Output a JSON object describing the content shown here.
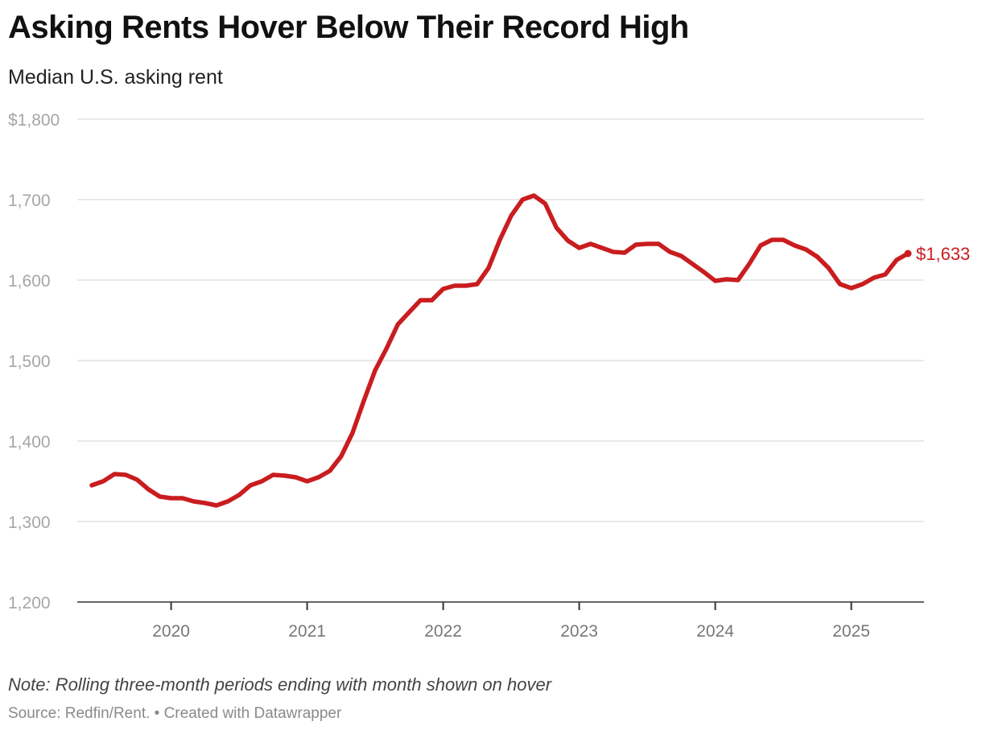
{
  "header": {
    "title": "Asking Rents Hover Below Their Record High",
    "subtitle": "Median U.S. asking rent"
  },
  "footer": {
    "note": "Note: Rolling three-month periods ending with month shown on hover",
    "source": "Source: Redfin/Rent. • Created with Datawrapper"
  },
  "chart_data": {
    "type": "line",
    "title": "Asking Rents Hover Below Their Record High",
    "subtitle": "Median U.S. asking rent",
    "xlabel": "",
    "ylabel": "",
    "ylim": [
      1200,
      1800
    ],
    "xlim": [
      "2019-05",
      "2025-07"
    ],
    "grid": true,
    "y_ticks": [
      1200,
      1300,
      1400,
      1500,
      1600,
      1700,
      1800
    ],
    "y_tick_labels": [
      "1,200",
      "1,300",
      "1,400",
      "1,500",
      "1,600",
      "1,700",
      "$1,800"
    ],
    "x_ticks": [
      "2020-01",
      "2021-01",
      "2022-01",
      "2023-01",
      "2024-01",
      "2025-01"
    ],
    "x_tick_labels": [
      "2020",
      "2021",
      "2022",
      "2023",
      "2024",
      "2025"
    ],
    "end_label": "$1,633",
    "colors": {
      "line": "#c91d1f",
      "grid": "#dcdcdc",
      "axis": "#333333"
    },
    "series": [
      {
        "points": [
          [
            "2019-06",
            1345
          ],
          [
            "2019-07",
            1350
          ],
          [
            "2019-08",
            1359
          ],
          [
            "2019-09",
            1358
          ],
          [
            "2019-10",
            1352
          ],
          [
            "2019-11",
            1340
          ],
          [
            "2019-12",
            1331
          ],
          [
            "2020-01",
            1329
          ],
          [
            "2020-02",
            1329
          ],
          [
            "2020-03",
            1325
          ],
          [
            "2020-04",
            1323
          ],
          [
            "2020-05",
            1320
          ],
          [
            "2020-06",
            1325
          ],
          [
            "2020-07",
            1333
          ],
          [
            "2020-08",
            1345
          ],
          [
            "2020-09",
            1350
          ],
          [
            "2020-10",
            1358
          ],
          [
            "2020-11",
            1357
          ],
          [
            "2020-12",
            1355
          ],
          [
            "2021-01",
            1350
          ],
          [
            "2021-02",
            1355
          ],
          [
            "2021-03",
            1363
          ],
          [
            "2021-04",
            1381
          ],
          [
            "2021-05",
            1410
          ],
          [
            "2021-06",
            1450
          ],
          [
            "2021-07",
            1488
          ],
          [
            "2021-08",
            1515
          ],
          [
            "2021-09",
            1545
          ],
          [
            "2021-10",
            1560
          ],
          [
            "2021-11",
            1575
          ],
          [
            "2021-12",
            1575
          ],
          [
            "2022-01",
            1589
          ],
          [
            "2022-02",
            1593
          ],
          [
            "2022-03",
            1593
          ],
          [
            "2022-04",
            1595
          ],
          [
            "2022-05",
            1615
          ],
          [
            "2022-06",
            1650
          ],
          [
            "2022-07",
            1680
          ],
          [
            "2022-08",
            1700
          ],
          [
            "2022-09",
            1705
          ],
          [
            "2022-10",
            1695
          ],
          [
            "2022-11",
            1665
          ],
          [
            "2022-12",
            1649
          ],
          [
            "2023-01",
            1640
          ],
          [
            "2023-02",
            1645
          ],
          [
            "2023-03",
            1640
          ],
          [
            "2023-04",
            1635
          ],
          [
            "2023-05",
            1634
          ],
          [
            "2023-06",
            1644
          ],
          [
            "2023-07",
            1645
          ],
          [
            "2023-08",
            1645
          ],
          [
            "2023-09",
            1635
          ],
          [
            "2023-10",
            1630
          ],
          [
            "2023-11",
            1620
          ],
          [
            "2023-12",
            1610
          ],
          [
            "2024-01",
            1599
          ],
          [
            "2024-02",
            1601
          ],
          [
            "2024-03",
            1600
          ],
          [
            "2024-04",
            1620
          ],
          [
            "2024-05",
            1643
          ],
          [
            "2024-06",
            1650
          ],
          [
            "2024-07",
            1650
          ],
          [
            "2024-08",
            1643
          ],
          [
            "2024-09",
            1638
          ],
          [
            "2024-10",
            1629
          ],
          [
            "2024-11",
            1615
          ],
          [
            "2024-12",
            1595
          ],
          [
            "2025-01",
            1590
          ],
          [
            "2025-02",
            1595
          ],
          [
            "2025-03",
            1603
          ],
          [
            "2025-04",
            1607
          ],
          [
            "2025-05",
            1625
          ],
          [
            "2025-06",
            1633
          ]
        ]
      }
    ]
  }
}
